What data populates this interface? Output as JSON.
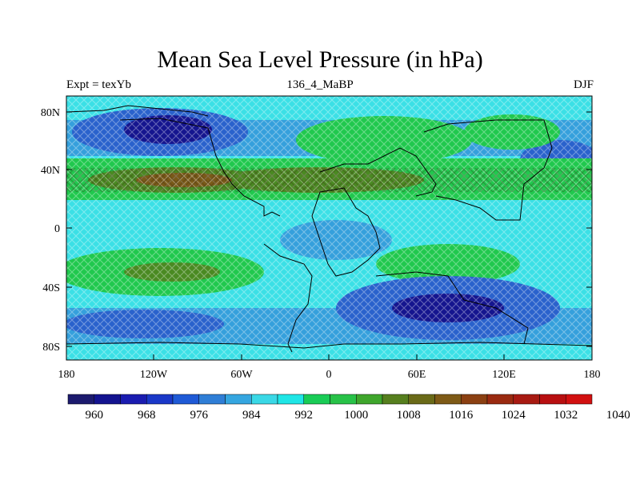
{
  "title": "Mean Sea Level Pressure (in hPa)",
  "subtitle_left": "Expt = texYb",
  "subtitle_center": "136_4_MaBP",
  "subtitle_right": "DJF",
  "lat_ticks": [
    "80N",
    "40N",
    "0",
    "40S",
    "80S"
  ],
  "lon_ticks": [
    "180",
    "120W",
    "60W",
    "0",
    "60E",
    "120E",
    "180"
  ],
  "colorbar": {
    "colors": [
      "#1c1a6e",
      "#13138f",
      "#1a1cb0",
      "#1a38c8",
      "#1f5ad6",
      "#2f7ed6",
      "#35a6e0",
      "#3ad8e6",
      "#1fe6e6",
      "#19cc56",
      "#28c248",
      "#3fa62c",
      "#567f1e",
      "#6a6a18",
      "#7e5a16",
      "#8b4012",
      "#9a2a10",
      "#a81a12",
      "#b80f10",
      "#d21010"
    ],
    "labels": [
      "960",
      "968",
      "976",
      "984",
      "992",
      "1000",
      "1008",
      "1016",
      "1024",
      "1032",
      "1040"
    ]
  },
  "colors": {
    "low_deep": "#15158f",
    "low": "#2a62cc",
    "mid_low": "#35a0dc",
    "mid": "#3be0e6",
    "high": "#20c84e",
    "very_high": "#4a8a22",
    "top_high": "#7a5a18"
  }
}
